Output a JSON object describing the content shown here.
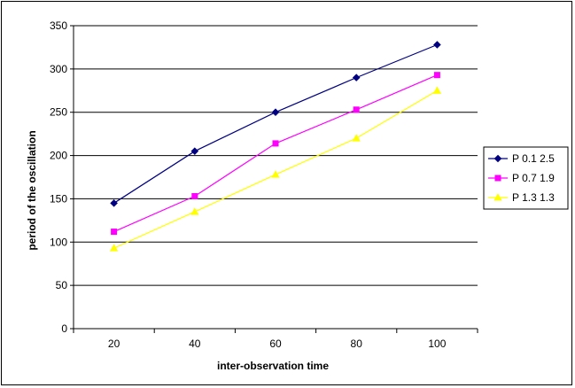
{
  "chart_data": {
    "type": "line",
    "title": "",
    "xlabel": "inter-observation time",
    "ylabel": "period of the oscillation",
    "x": [
      20,
      40,
      60,
      80,
      100
    ],
    "xticks": [
      "20",
      "40",
      "60",
      "80",
      "100"
    ],
    "ylim": [
      0,
      350
    ],
    "yticks": [
      0,
      50,
      100,
      150,
      200,
      250,
      300,
      350
    ],
    "grid": "horizontal",
    "legend_position": "right",
    "series": [
      {
        "name": "P 0.1 2.5",
        "values": [
          145,
          205,
          250,
          290,
          328
        ],
        "color": "#000080",
        "marker": "diamond"
      },
      {
        "name": "P 0.7 1.9",
        "values": [
          112,
          153,
          214,
          253,
          293
        ],
        "color": "#FF00FF",
        "marker": "square"
      },
      {
        "name": "P 1.3 1.3",
        "values": [
          93,
          135,
          178,
          220,
          275
        ],
        "color": "#FFFF00",
        "marker": "triangle"
      }
    ]
  }
}
